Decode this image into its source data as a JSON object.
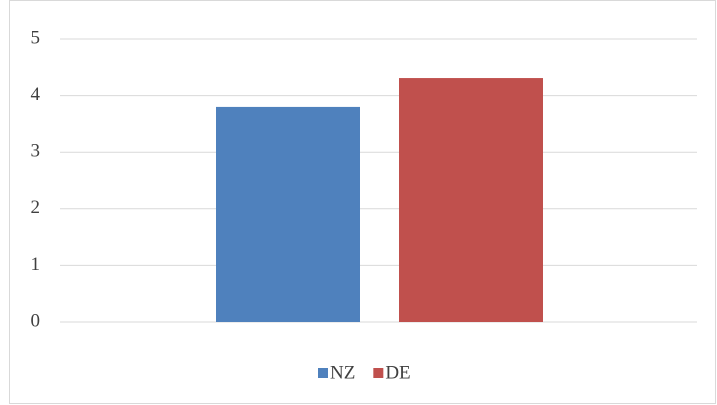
{
  "chart_data": {
    "type": "bar",
    "categories": [
      null
    ],
    "series": [
      {
        "name": "NZ",
        "color": "#4f81bd",
        "values": [
          3.8
        ]
      },
      {
        "name": "DE",
        "color": "#c0504d",
        "values": [
          4.31
        ]
      }
    ],
    "ylim": [
      0,
      5
    ],
    "yticks": [
      0,
      1,
      2,
      3,
      4,
      5
    ],
    "grid": true,
    "legend": "bottom"
  }
}
